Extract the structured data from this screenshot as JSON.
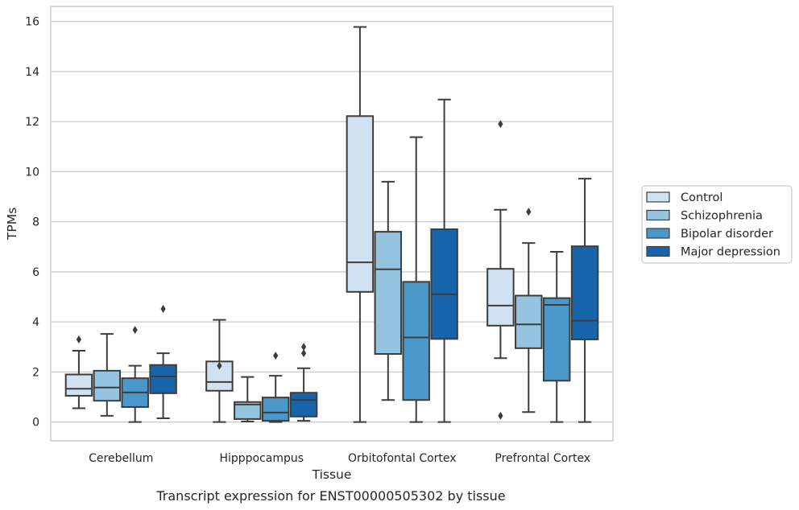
{
  "caption": "Transcript expression for ENST00000505302 by tissue",
  "chart_data": {
    "type": "box",
    "xlabel": "Tissue",
    "ylabel": "TPMs",
    "ylim": [
      -0.75,
      16.6
    ],
    "yticks": [
      0,
      2,
      4,
      6,
      8,
      10,
      12,
      14,
      16
    ],
    "grid": "horizontal",
    "legend_position": "right",
    "categories": [
      "Cerebellum",
      "Hipppocampus",
      "Orbitofontal Cortex",
      "Prefrontal Cortex"
    ],
    "series": [
      {
        "name": "Control",
        "color": "#d0e1f2",
        "boxes": [
          {
            "whislo": 0.55,
            "q1": 1.05,
            "med": 1.33,
            "q3": 1.9,
            "whishi": 2.85,
            "fliers": [
              3.3
            ]
          },
          {
            "whislo": 0.0,
            "q1": 1.25,
            "med": 1.6,
            "q3": 2.42,
            "whishi": 4.08,
            "fliers": [
              2.25
            ]
          },
          {
            "whislo": 0.0,
            "q1": 5.2,
            "med": 6.38,
            "q3": 12.22,
            "whishi": 15.78,
            "fliers": []
          },
          {
            "whislo": 2.55,
            "q1": 3.85,
            "med": 4.65,
            "q3": 6.12,
            "whishi": 8.48,
            "fliers": [
              11.9,
              0.25
            ]
          }
        ]
      },
      {
        "name": "Schizophrenia",
        "color": "#94c4df",
        "boxes": [
          {
            "whislo": 0.25,
            "q1": 0.85,
            "med": 1.38,
            "q3": 2.05,
            "whishi": 3.52,
            "fliers": []
          },
          {
            "whislo": 0.02,
            "q1": 0.12,
            "med": 0.7,
            "q3": 0.8,
            "whishi": 1.8,
            "fliers": []
          },
          {
            "whislo": 0.88,
            "q1": 2.72,
            "med": 6.1,
            "q3": 7.6,
            "whishi": 9.6,
            "fliers": []
          },
          {
            "whislo": 0.4,
            "q1": 2.95,
            "med": 3.9,
            "q3": 5.05,
            "whishi": 7.15,
            "fliers": [
              8.4
            ]
          }
        ]
      },
      {
        "name": "Bipolar disorder",
        "color": "#4a98c9",
        "boxes": [
          {
            "whislo": 0.0,
            "q1": 0.6,
            "med": 1.18,
            "q3": 1.75,
            "whishi": 2.25,
            "fliers": [
              3.68
            ]
          },
          {
            "whislo": 0.0,
            "q1": 0.05,
            "med": 0.38,
            "q3": 0.98,
            "whishi": 1.85,
            "fliers": [
              2.65
            ]
          },
          {
            "whislo": 0.0,
            "q1": 0.88,
            "med": 3.38,
            "q3": 5.6,
            "whishi": 11.38,
            "fliers": []
          },
          {
            "whislo": 0.0,
            "q1": 1.65,
            "med": 4.68,
            "q3": 4.95,
            "whishi": 6.8,
            "fliers": []
          }
        ]
      },
      {
        "name": "Major depression",
        "color": "#1764ab",
        "boxes": [
          {
            "whislo": 0.15,
            "q1": 1.15,
            "med": 1.82,
            "q3": 2.28,
            "whishi": 2.75,
            "fliers": [
              4.52
            ]
          },
          {
            "whislo": 0.05,
            "q1": 0.22,
            "med": 0.88,
            "q3": 1.17,
            "whishi": 2.15,
            "fliers": [
              2.75,
              3.0
            ]
          },
          {
            "whislo": 0.0,
            "q1": 3.32,
            "med": 5.1,
            "q3": 7.7,
            "whishi": 12.88,
            "fliers": []
          },
          {
            "whislo": 0.0,
            "q1": 3.3,
            "med": 4.05,
            "q3": 7.02,
            "whishi": 9.72,
            "fliers": []
          }
        ]
      }
    ]
  }
}
